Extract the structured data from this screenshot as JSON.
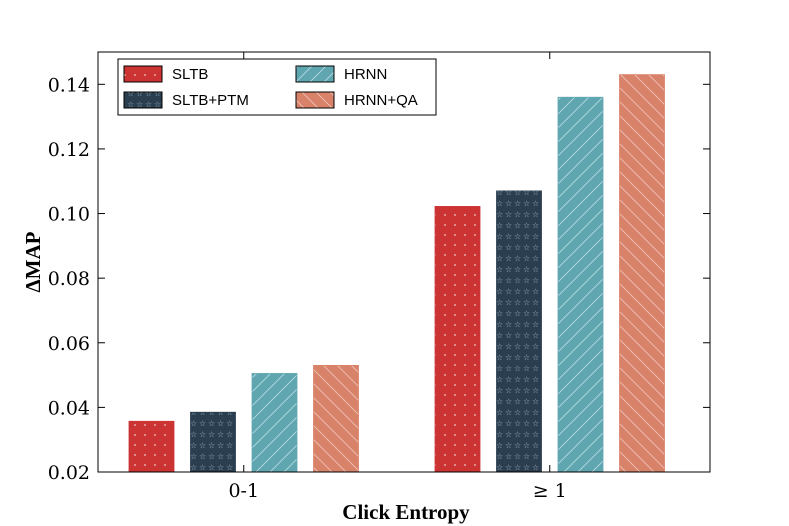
{
  "chart_data": {
    "type": "bar",
    "categories": [
      "0-1",
      "≥ 1"
    ],
    "xlabel": "Click Entropy",
    "ylabel": "ΔMAP",
    "ylim": [
      0.02,
      0.15
    ],
    "yticks": [
      "0.02",
      "0.04",
      "0.06",
      "0.08",
      "0.10",
      "0.12",
      "0.14"
    ],
    "grid": false,
    "legend_position": "top-left",
    "series": [
      {
        "name": "SLTB",
        "values": [
          0.0357,
          0.1022
        ],
        "color": "#cc3333",
        "pattern": "dots"
      },
      {
        "name": "SLTB+PTM",
        "values": [
          0.0385,
          0.107
        ],
        "color": "#2b3e50",
        "pattern": "stars"
      },
      {
        "name": "HRNN",
        "values": [
          0.0505,
          0.136
        ],
        "color": "#5fa6b0",
        "pattern": "diagonal-forward"
      },
      {
        "name": "HRNN+QA",
        "values": [
          0.053,
          0.143
        ],
        "color": "#d9826a",
        "pattern": "diagonal-back"
      }
    ]
  }
}
